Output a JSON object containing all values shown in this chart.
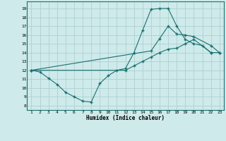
{
  "xlabel": "Humidex (Indice chaleur)",
  "bg_color": "#ceeaea",
  "grid_color": "#aed0d0",
  "line_color": "#1a7070",
  "x_ticks": [
    1,
    2,
    3,
    4,
    5,
    6,
    7,
    8,
    9,
    10,
    11,
    12,
    13,
    14,
    15,
    16,
    17,
    18,
    19,
    20,
    21,
    22,
    23
  ],
  "y_ticks": [
    8,
    9,
    10,
    11,
    12,
    13,
    14,
    15,
    16,
    17,
    18,
    19
  ],
  "xlim": [
    0.5,
    23.5
  ],
  "ylim": [
    7.5,
    19.8
  ],
  "line1_x": [
    1,
    2,
    3,
    4,
    5,
    6,
    7,
    8,
    9,
    10,
    11,
    12,
    13,
    14,
    15,
    16,
    17,
    18,
    19,
    20,
    21,
    22
  ],
  "line1_y": [
    12,
    11.8,
    11.1,
    10.4,
    9.5,
    9.0,
    8.5,
    8.4,
    10.5,
    11.4,
    12.0,
    12.2,
    14.0,
    16.5,
    18.9,
    19.0,
    19.0,
    17.0,
    15.5,
    15.0,
    14.8,
    14.0
  ],
  "line2_x": [
    1,
    15,
    16,
    17,
    18,
    19,
    20,
    22,
    23
  ],
  "line2_y": [
    12,
    14.2,
    15.6,
    17.0,
    16.1,
    16.0,
    15.8,
    14.8,
    14.0
  ],
  "line3_x": [
    1,
    12,
    13,
    14,
    15,
    16,
    17,
    18,
    19,
    20,
    22,
    23
  ],
  "line3_y": [
    12,
    12.0,
    12.5,
    13.0,
    13.5,
    14.0,
    14.4,
    14.5,
    15.0,
    15.5,
    14.0,
    14.0
  ]
}
